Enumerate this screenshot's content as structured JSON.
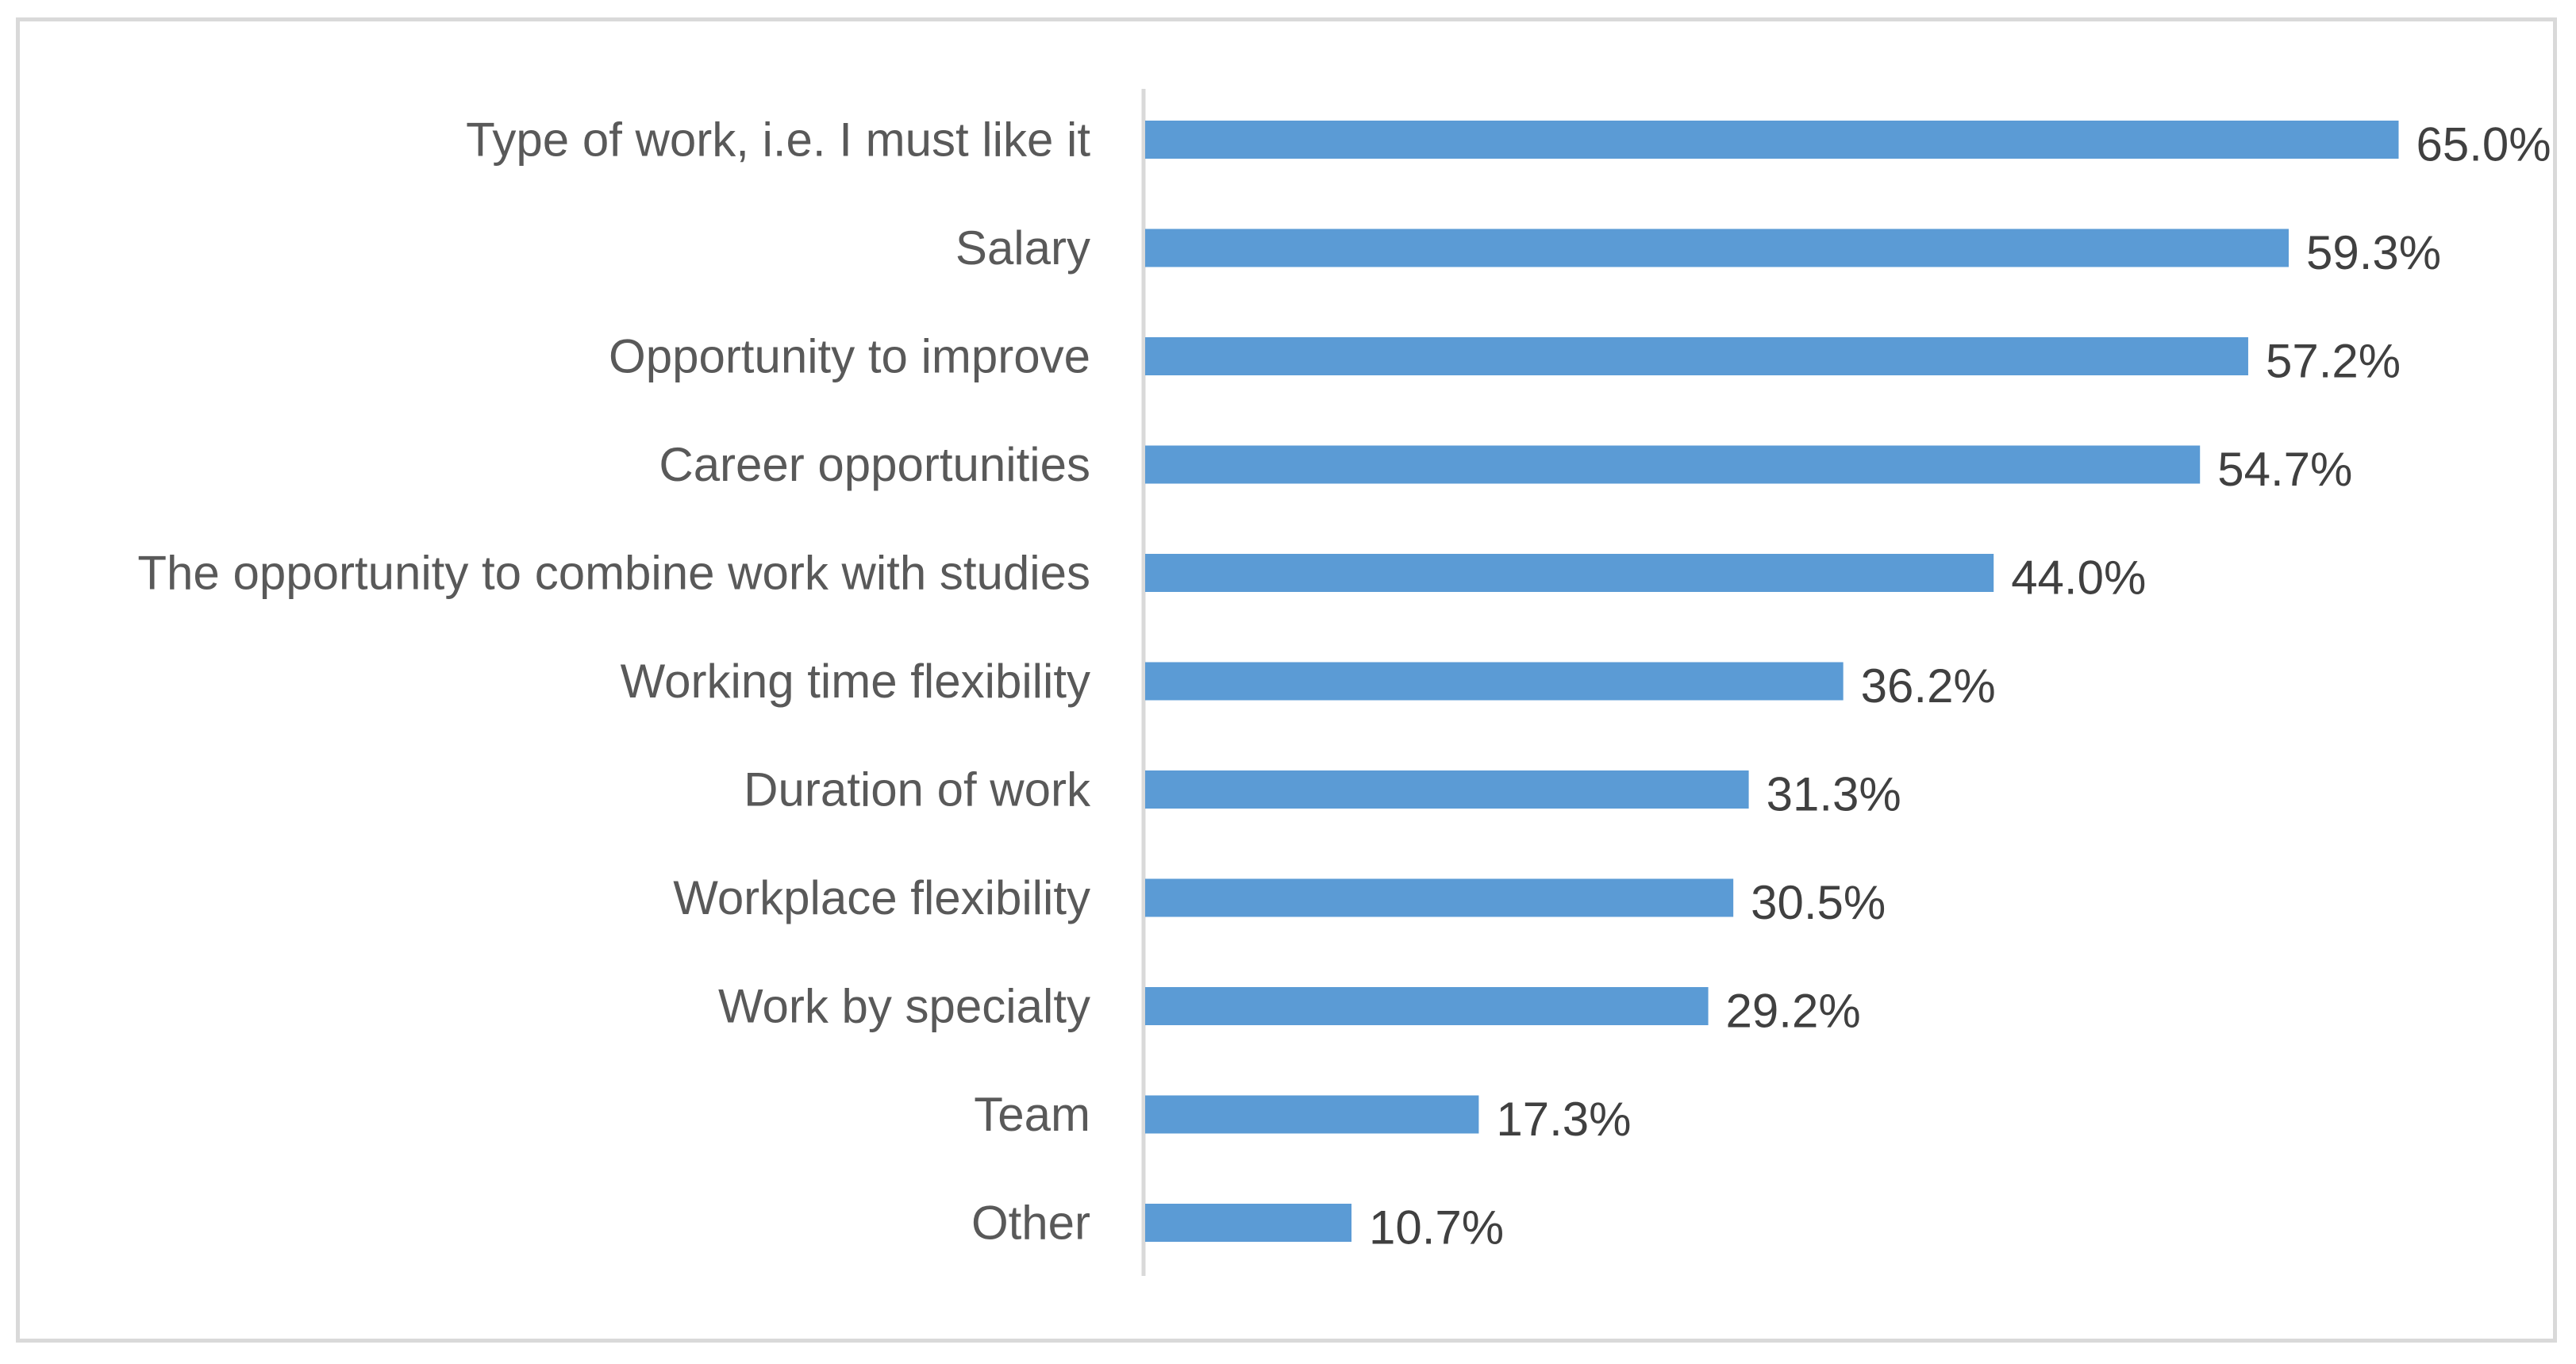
{
  "chart_data": {
    "type": "bar",
    "orientation": "horizontal",
    "title": "",
    "xlabel": "",
    "ylabel": "",
    "categories": [
      "Type of work, i.e. I must like it",
      "Salary",
      "Opportunity to improve",
      "Career opportunities",
      "The opportunity to combine work with studies",
      "Working time flexibility",
      "Duration of work",
      "Workplace flexibility",
      "Work by specialty",
      "Team",
      "Other"
    ],
    "values": [
      65.0,
      59.3,
      57.2,
      54.7,
      44.0,
      36.2,
      31.3,
      30.5,
      29.2,
      17.3,
      10.7
    ],
    "value_labels": [
      "65.0%",
      "59.3%",
      "57.2%",
      "54.7%",
      "44.0%",
      "36.2%",
      "31.3%",
      "30.5%",
      "29.2%",
      "17.3%",
      "10.7%"
    ],
    "unit": "%",
    "xlim": [
      0,
      65
    ],
    "grid": false,
    "legend": "none",
    "bar_color": "#5b9bd5",
    "axis_color": "#d9d9d9",
    "label_color": "#595959",
    "value_label_color": "#404040"
  }
}
